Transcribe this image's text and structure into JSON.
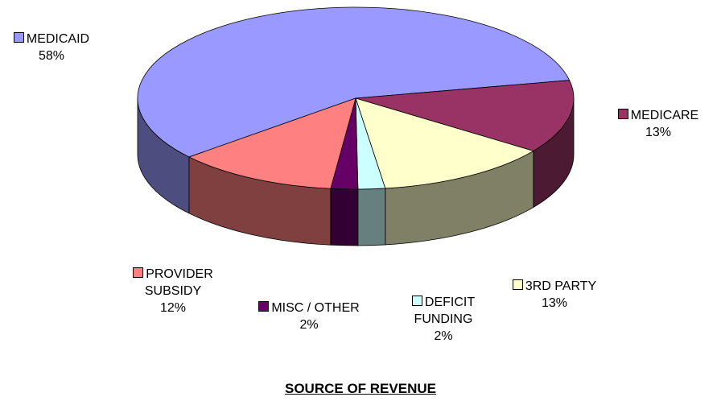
{
  "chart_data": {
    "type": "pie3d",
    "title": "SOURCE OF REVENUE",
    "categories": [
      "MEDICAID",
      "MEDICARE",
      "3RD PARTY",
      "DEFICIT FUNDING",
      "MISC  / OTHER",
      "PROVIDER SUBSIDY"
    ],
    "values": [
      58,
      13,
      13,
      2,
      2,
      12
    ],
    "value_labels": [
      "58%",
      "13%",
      "13%",
      "2%",
      "2%",
      "12%"
    ],
    "colors": [
      "#9999ff",
      "#993366",
      "#ffffcc",
      "#ccffff",
      "#660066",
      "#ff8080"
    ]
  }
}
